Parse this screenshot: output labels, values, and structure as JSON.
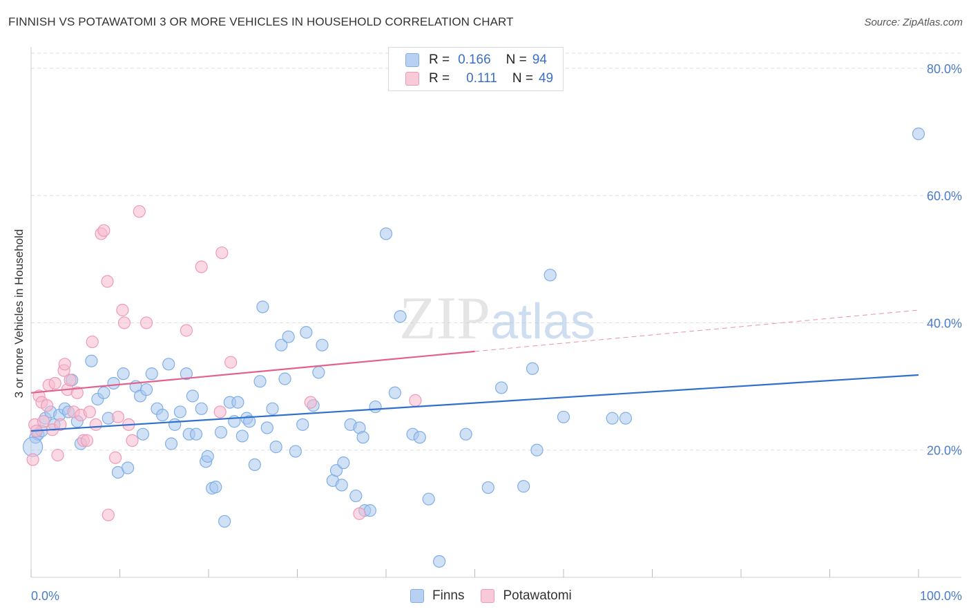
{
  "header": {
    "title": "FINNISH VS POTAWATOMI 3 OR MORE VEHICLES IN HOUSEHOLD CORRELATION CHART",
    "source": "Source: ZipAtlas.com"
  },
  "watermark": "ZIPatlas",
  "legend": {
    "rows": [
      {
        "r_label": "R =",
        "r_value": "0.166",
        "n_label": "N =",
        "n_value": "94"
      },
      {
        "r_label": "R =",
        "r_value": "0.111",
        "n_label": "N =",
        "n_value": "49"
      }
    ]
  },
  "bottom_legend": {
    "finns": "Finns",
    "potawatomi": "Potawatomi"
  },
  "colors": {
    "finns_fill": "#a9c8ef",
    "finns_stroke": "#7faee6",
    "finns_line": "#2f6fcf",
    "pota_fill": "#f5b9cd",
    "pota_stroke": "#ee9ab6",
    "pota_line": "#e2608d",
    "tick_text": "#4a7cc9",
    "grid": "#dddddd"
  },
  "chart_data": {
    "type": "scatter",
    "title": "FINNISH VS POTAWATOMI 3 OR MORE VEHICLES IN HOUSEHOLD CORRELATION CHART",
    "xlabel": "",
    "ylabel": "3 or more Vehicles in Household",
    "xlim": [
      0,
      100
    ],
    "ylim": [
      0,
      84
    ],
    "x_tick_labels": [
      "0.0%",
      "100.0%"
    ],
    "y_ticks": [
      20,
      40,
      60,
      80
    ],
    "y_tick_labels": [
      "20.0%",
      "40.0%",
      "60.0%",
      "80.0%"
    ],
    "grid": true,
    "legend_position": "top-center",
    "series": [
      {
        "name": "Finns",
        "r": 0.166,
        "n": 94,
        "trend": {
          "x": [
            0,
            100
          ],
          "y": [
            23.0,
            31.8
          ]
        },
        "points": [
          [
            0.5,
            22.0
          ],
          [
            0.8,
            22.5
          ],
          [
            1.2,
            23.0
          ],
          [
            1.6,
            25.0
          ],
          [
            2.2,
            26.0
          ],
          [
            2.6,
            24.0
          ],
          [
            3.2,
            25.5
          ],
          [
            3.8,
            26.5
          ],
          [
            4.2,
            26.0
          ],
          [
            4.6,
            31.0
          ],
          [
            5.2,
            24.5
          ],
          [
            5.6,
            21.0
          ],
          [
            6.8,
            34.0
          ],
          [
            7.5,
            28.0
          ],
          [
            8.2,
            29.0
          ],
          [
            8.7,
            25.0
          ],
          [
            9.3,
            30.5
          ],
          [
            9.8,
            16.5
          ],
          [
            10.4,
            32.0
          ],
          [
            10.9,
            17.2
          ],
          [
            11.8,
            30.0
          ],
          [
            12.3,
            28.5
          ],
          [
            12.6,
            22.5
          ],
          [
            13.0,
            29.5
          ],
          [
            13.6,
            32.0
          ],
          [
            14.2,
            26.5
          ],
          [
            14.8,
            25.5
          ],
          [
            15.5,
            33.5
          ],
          [
            15.8,
            21.0
          ],
          [
            16.2,
            24.0
          ],
          [
            16.8,
            26.0
          ],
          [
            17.5,
            32.0
          ],
          [
            17.8,
            22.5
          ],
          [
            18.2,
            28.5
          ],
          [
            18.6,
            22.5
          ],
          [
            19.2,
            26.5
          ],
          [
            19.7,
            18.2
          ],
          [
            19.9,
            19.0
          ],
          [
            20.4,
            14.0
          ],
          [
            20.8,
            14.2
          ],
          [
            21.4,
            22.8
          ],
          [
            21.8,
            8.8
          ],
          [
            22.4,
            27.5
          ],
          [
            22.9,
            24.5
          ],
          [
            23.3,
            27.5
          ],
          [
            23.8,
            22.2
          ],
          [
            24.3,
            25.0
          ],
          [
            24.6,
            24.5
          ],
          [
            25.2,
            17.7
          ],
          [
            25.8,
            30.8
          ],
          [
            26.1,
            42.5
          ],
          [
            26.6,
            23.5
          ],
          [
            27.2,
            26.5
          ],
          [
            27.6,
            20.5
          ],
          [
            28.2,
            36.5
          ],
          [
            28.6,
            31.2
          ],
          [
            29.0,
            37.8
          ],
          [
            29.8,
            19.8
          ],
          [
            30.6,
            24.0
          ],
          [
            31.0,
            38.5
          ],
          [
            31.8,
            27.0
          ],
          [
            32.4,
            32.2
          ],
          [
            32.8,
            36.5
          ],
          [
            34.0,
            15.2
          ],
          [
            34.4,
            16.8
          ],
          [
            35.2,
            18.0
          ],
          [
            35.0,
            14.5
          ],
          [
            36.0,
            24.0
          ],
          [
            36.6,
            12.8
          ],
          [
            37.0,
            23.5
          ],
          [
            37.4,
            22.0
          ],
          [
            37.6,
            10.5
          ],
          [
            38.2,
            10.5
          ],
          [
            38.8,
            26.8
          ],
          [
            40.0,
            54.0
          ],
          [
            41.0,
            29.0
          ],
          [
            41.6,
            41.0
          ],
          [
            43.0,
            22.5
          ],
          [
            43.8,
            22.0
          ],
          [
            44.8,
            12.3
          ],
          [
            46.0,
            2.5
          ],
          [
            49.0,
            22.5
          ],
          [
            51.5,
            14.1
          ],
          [
            53.0,
            29.8
          ],
          [
            55.5,
            14.3
          ],
          [
            56.5,
            32.8
          ],
          [
            57.0,
            20.0
          ],
          [
            58.5,
            47.5
          ],
          [
            60.0,
            25.2
          ],
          [
            65.5,
            25.0
          ],
          [
            67.0,
            25.0
          ],
          [
            100.0,
            69.7
          ]
        ]
      },
      {
        "name": "Potawatomi",
        "r": 0.111,
        "n": 49,
        "trend": {
          "x": [
            0,
            50
          ],
          "y": [
            29.0,
            35.5
          ]
        },
        "trend_dashed": {
          "x": [
            50,
            100
          ],
          "y": [
            35.5,
            42.0
          ]
        },
        "points": [
          [
            0.2,
            18.5
          ],
          [
            0.4,
            24.0
          ],
          [
            0.6,
            23.0
          ],
          [
            0.9,
            28.5
          ],
          [
            1.2,
            27.5
          ],
          [
            1.4,
            24.5
          ],
          [
            1.8,
            27.0
          ],
          [
            2.0,
            30.2
          ],
          [
            2.4,
            23.2
          ],
          [
            2.7,
            30.5
          ],
          [
            3.0,
            19.2
          ],
          [
            3.3,
            24.0
          ],
          [
            3.7,
            32.5
          ],
          [
            3.8,
            33.5
          ],
          [
            4.1,
            29.5
          ],
          [
            4.4,
            31.0
          ],
          [
            4.8,
            26.0
          ],
          [
            5.2,
            29.0
          ],
          [
            5.6,
            25.5
          ],
          [
            5.9,
            21.5
          ],
          [
            6.3,
            21.5
          ],
          [
            6.6,
            26.0
          ],
          [
            6.9,
            37.0
          ],
          [
            7.3,
            24.0
          ],
          [
            7.9,
            54.0
          ],
          [
            8.2,
            54.5
          ],
          [
            8.6,
            46.5
          ],
          [
            8.7,
            9.8
          ],
          [
            9.5,
            18.8
          ],
          [
            9.8,
            25.2
          ],
          [
            10.3,
            42.0
          ],
          [
            10.5,
            40.0
          ],
          [
            11.0,
            24.0
          ],
          [
            11.4,
            21.5
          ],
          [
            12.2,
            57.5
          ],
          [
            13.0,
            40.0
          ],
          [
            17.5,
            38.8
          ],
          [
            19.2,
            48.8
          ],
          [
            21.3,
            26.0
          ],
          [
            21.5,
            51.0
          ],
          [
            22.5,
            33.8
          ],
          [
            31.5,
            27.5
          ],
          [
            37.0,
            10.0
          ],
          [
            43.3,
            27.8
          ]
        ]
      }
    ]
  }
}
